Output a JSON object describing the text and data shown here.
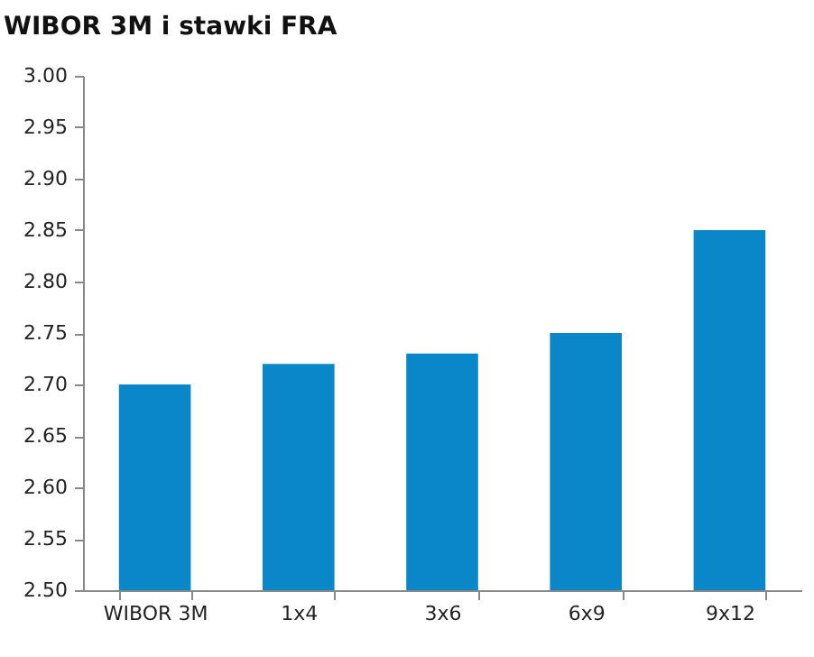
{
  "chart_data": {
    "type": "bar",
    "title": "WIBOR 3M i stawki FRA",
    "categories": [
      "WIBOR 3M",
      "1x4",
      "3x6",
      "6x9",
      "9x12"
    ],
    "values": [
      2.7,
      2.72,
      2.73,
      2.75,
      2.85
    ],
    "color": "#0a87c8",
    "ylim": [
      2.5,
      3.0
    ],
    "yticks": [
      {
        "value": 2.5,
        "label": "2.50"
      },
      {
        "value": 2.55,
        "label": "2.55"
      },
      {
        "value": 2.6,
        "label": "2.60"
      },
      {
        "value": 2.65,
        "label": "2.65"
      },
      {
        "value": 2.7,
        "label": "2.70"
      },
      {
        "value": 2.75,
        "label": "2.75"
      },
      {
        "value": 2.8,
        "label": "2.80"
      },
      {
        "value": 2.85,
        "label": "2.85"
      },
      {
        "value": 2.9,
        "label": "2.90"
      },
      {
        "value": 2.95,
        "label": "2.95"
      },
      {
        "value": 3.0,
        "label": "3.00"
      }
    ],
    "grid": false
  }
}
